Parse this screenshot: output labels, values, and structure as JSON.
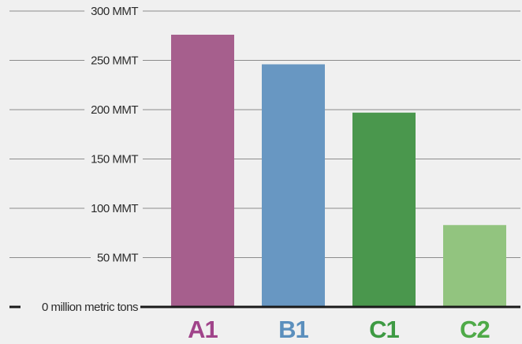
{
  "chart_data": {
    "type": "bar",
    "categories": [
      "A1",
      "B1",
      "C1",
      "C2"
    ],
    "values": [
      276,
      246,
      197,
      83
    ],
    "bar_colors": [
      "#a65f8d",
      "#6897c2",
      "#4a974d",
      "#92c47f"
    ],
    "label_colors": [
      "#a0448a",
      "#5b8fbd",
      "#3e9a43",
      "#4faa48"
    ],
    "ylim": [
      0,
      300
    ],
    "y_ticks": [
      {
        "value": 0,
        "label": "0 million metric tons"
      },
      {
        "value": 50,
        "label": "50 MMT"
      },
      {
        "value": 100,
        "label": "100 MMT"
      },
      {
        "value": 150,
        "label": "150 MMT"
      },
      {
        "value": 200,
        "label": "200 MMT"
      },
      {
        "value": 250,
        "label": "250 MMT"
      },
      {
        "value": 300,
        "label": "300 MMT"
      }
    ],
    "title": "",
    "xlabel": "",
    "ylabel": "",
    "grid": true
  }
}
